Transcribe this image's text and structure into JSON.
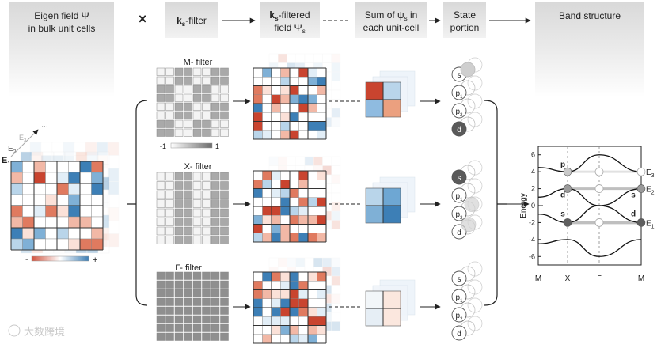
{
  "header": {
    "eigen": {
      "line1": "Eigen field Ψ",
      "line2": "in bulk unit cells"
    },
    "times": "×",
    "kfilter": {
      "k": "k",
      "sub": "s",
      "rest": "-filter"
    },
    "kfiltered": {
      "k": "k",
      "sub": "s",
      "rest": "-filtered",
      "line2a": "field Ψ",
      "line2sub": "s"
    },
    "sum": {
      "line1": "Sum of ψ",
      "sub": "s",
      "line1b": " in",
      "line2": "each unit-cell"
    },
    "state": {
      "line1": "State",
      "line2": "portion"
    },
    "band": "Band structure"
  },
  "eigen_block": {
    "e1": "E",
    "e1sub": "1",
    "e2": "E",
    "e2sub": "2",
    "e3": "E",
    "e3sub": "3",
    "dots": "…",
    "minus": "-",
    "plus": "+"
  },
  "filters": [
    {
      "label": "M- filter",
      "scale_min": "-1",
      "scale_max": "1"
    },
    {
      "label": "X- filter"
    },
    {
      "label": "Γ- filter"
    }
  ],
  "states": {
    "labels": [
      "s",
      "p",
      "p",
      "d"
    ],
    "subs": [
      "",
      "1",
      "2",
      ""
    ],
    "highlight": [
      "d",
      "s",
      "none"
    ]
  },
  "band_chart": {
    "ylabel": "Energy",
    "yticks": [
      "6",
      "4",
      "2",
      "0",
      "-2",
      "-4",
      "-6"
    ],
    "xticks": [
      "M",
      "X",
      "Γ",
      "M"
    ],
    "levels": [
      {
        "label": "E",
        "sub": "3"
      },
      {
        "label": "E",
        "sub": "2"
      },
      {
        "label": "E",
        "sub": "1"
      }
    ],
    "point_labels": [
      "p",
      "d",
      "s",
      "s",
      "d"
    ]
  },
  "chart_data": {
    "type": "line",
    "title": "Band structure",
    "xlabel": "",
    "ylabel": "Energy",
    "x_ticks": [
      "M",
      "X",
      "Γ",
      "M"
    ],
    "ylim": [
      -7,
      7
    ],
    "series": [
      {
        "values": [
          {
            "k": "M",
            "E": 4.5
          },
          {
            "k": "X",
            "E": 4.0
          },
          {
            "k": "Γ",
            "E": 6.0
          },
          {
            "k": "M",
            "E": 4.0
          }
        ]
      },
      {
        "values": [
          {
            "k": "M",
            "E": 1.0
          },
          {
            "k": "X",
            "E": 2.0
          },
          {
            "k": "Γ",
            "E": 0.0
          },
          {
            "k": "M",
            "E": 2.0
          }
        ]
      },
      {
        "values": [
          {
            "k": "M",
            "E": -1.0
          },
          {
            "k": "X",
            "E": -2.0
          },
          {
            "k": "Γ",
            "E": 0.0
          },
          {
            "k": "M",
            "E": -2.0
          }
        ]
      },
      {
        "values": [
          {
            "k": "M",
            "E": -4.5
          },
          {
            "k": "X",
            "E": -4.0
          },
          {
            "k": "Γ",
            "E": -6.0
          },
          {
            "k": "M",
            "E": -4.0
          }
        ]
      }
    ],
    "levels": [
      {
        "name": "E3",
        "E": 4
      },
      {
        "name": "E2",
        "E": 2
      },
      {
        "name": "E1",
        "E": -2
      }
    ]
  },
  "watermark": "大数跨境"
}
